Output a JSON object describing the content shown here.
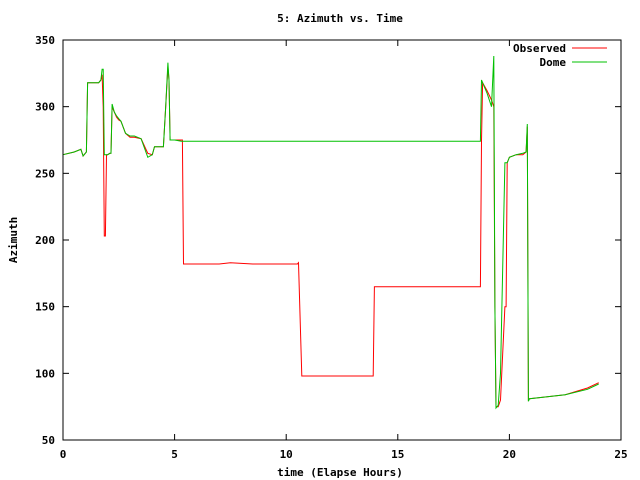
{
  "chart_data": {
    "type": "line",
    "title": "5: Azimuth vs. Time",
    "xlabel": "time (Elapse Hours)",
    "ylabel": "Azimuth",
    "xlim": [
      0,
      25
    ],
    "ylim": [
      50,
      350
    ],
    "xticks": [
      "0",
      "5",
      "10",
      "15",
      "20",
      "25"
    ],
    "yticks": [
      "50",
      "100",
      "150",
      "200",
      "250",
      "300",
      "350"
    ],
    "grid": false,
    "legend": "top-right",
    "series": [
      {
        "name": "Observed",
        "color": "#ff0000",
        "x": [
          0.0,
          0.5,
          0.8,
          0.9,
          1.05,
          1.1,
          1.2,
          1.6,
          1.7,
          1.75,
          1.8,
          1.85,
          1.9,
          1.95,
          2.0,
          2.1,
          2.15,
          2.2,
          2.3,
          2.4,
          2.5,
          2.6,
          2.8,
          3.0,
          3.2,
          3.5,
          3.8,
          4.0,
          4.1,
          4.3,
          4.5,
          4.6,
          4.7,
          4.75,
          4.8,
          5.0,
          5.2,
          5.35,
          5.4,
          5.5,
          7.0,
          7.5,
          8.5,
          10.5,
          10.55,
          10.7,
          11.5,
          13.9,
          13.95,
          15.0,
          18.7,
          18.75,
          18.8,
          19.0,
          19.2,
          19.3,
          19.35,
          19.4,
          19.5,
          19.6,
          19.8,
          19.85,
          19.9,
          20.0,
          20.3,
          20.6,
          20.75,
          20.8,
          20.85,
          20.9,
          21.5,
          22.5,
          23.5,
          24.0
        ],
        "y": [
          264,
          266,
          268,
          263,
          266,
          318,
          318,
          318,
          320,
          324,
          300,
          203,
          203,
          264,
          264,
          265,
          265,
          300,
          296,
          292,
          290,
          289,
          280,
          277,
          277,
          276,
          265,
          264,
          270,
          270,
          270,
          300,
          330,
          320,
          275,
          275,
          275,
          275,
          182,
          182,
          182,
          183,
          182,
          182,
          183,
          98,
          98,
          98,
          165,
          165,
          165,
          274,
          318,
          312,
          305,
          300,
          150,
          75,
          75,
          80,
          150,
          150,
          258,
          262,
          264,
          264,
          266,
          285,
          80,
          81,
          82,
          84,
          89,
          93
        ]
      },
      {
        "name": "Dome",
        "color": "#00c000",
        "x": [
          0.0,
          0.5,
          0.8,
          0.9,
          1.05,
          1.1,
          1.2,
          1.6,
          1.7,
          1.75,
          1.8,
          1.85,
          1.95,
          2.0,
          2.1,
          2.15,
          2.2,
          2.3,
          2.4,
          2.5,
          2.6,
          2.8,
          3.0,
          3.2,
          3.5,
          3.8,
          4.0,
          4.1,
          4.3,
          4.5,
          4.6,
          4.7,
          4.75,
          4.8,
          5.0,
          5.3,
          8.0,
          18.5,
          18.7,
          18.75,
          18.8,
          19.0,
          19.2,
          19.3,
          19.35,
          19.4,
          19.5,
          19.6,
          19.8,
          19.85,
          19.9,
          20.0,
          20.3,
          20.6,
          20.75,
          20.8,
          20.85,
          20.9,
          21.5,
          22.5,
          23.5,
          24.0
        ],
        "y": [
          264,
          266,
          268,
          263,
          266,
          318,
          318,
          318,
          320,
          328,
          328,
          264,
          264,
          264,
          265,
          265,
          302,
          296,
          293,
          291,
          289,
          280,
          278,
          278,
          276,
          262,
          264,
          270,
          270,
          270,
          300,
          333,
          320,
          275,
          275,
          274,
          274,
          274,
          274,
          320,
          318,
          310,
          300,
          338,
          150,
          74,
          76,
          100,
          258,
          258,
          258,
          262,
          264,
          265,
          266,
          287,
          79,
          81,
          82,
          84,
          88,
          92
        ]
      }
    ]
  }
}
